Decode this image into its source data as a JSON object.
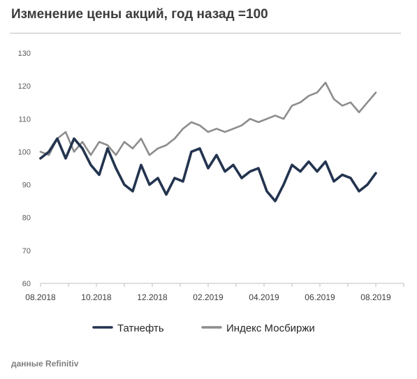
{
  "title": "Изменение цены акций, год назад =100",
  "source": "данные Refinitiv",
  "chart_data": {
    "type": "line",
    "title": "Изменение цены акций, год назад =100",
    "xlabel": "",
    "ylabel": "",
    "ylim": [
      60,
      130
    ],
    "yticks": [
      60,
      70,
      80,
      90,
      100,
      110,
      120,
      130
    ],
    "xticks": [
      "08.2018",
      "10.2018",
      "12.2018",
      "02.2019",
      "04.2019",
      "06.2019",
      "08.2019"
    ],
    "grid": false,
    "legend": "bottom",
    "colors": {
      "tatneft": "#23344f",
      "moex": "#8c8c8c"
    },
    "series": [
      {
        "name": "Татнефть",
        "x": [
          "08.2018",
          "08.2018",
          "09.2018",
          "09.2018",
          "09.2018",
          "09.2018",
          "10.2018",
          "10.2018",
          "10.2018",
          "11.2018",
          "11.2018",
          "11.2018",
          "11.2018",
          "11.2018",
          "12.2018",
          "12.2018",
          "12.2018",
          "01.2019",
          "01.2019",
          "01.2019",
          "02.2019",
          "02.2019",
          "02.2019",
          "03.2019",
          "03.2019",
          "03.2019",
          "04.2019",
          "04.2019",
          "04.2019",
          "05.2019",
          "05.2019",
          "05.2019",
          "06.2019",
          "06.2019",
          "06.2019",
          "07.2019",
          "07.2019",
          "07.2019",
          "07.2019",
          "08.2019",
          "08.2019"
        ],
        "values": [
          98,
          100,
          104,
          98,
          104,
          101,
          96,
          93,
          101,
          95,
          90,
          88,
          96,
          90,
          92,
          87,
          92,
          91,
          100,
          101,
          95,
          99,
          94,
          96,
          92,
          94,
          95,
          88,
          85,
          90,
          96,
          94,
          97,
          94,
          97,
          91,
          93,
          92,
          88,
          90,
          93.5
        ]
      },
      {
        "name": "Индекс Мосбиржи",
        "x": [
          "08.2018",
          "08.2018",
          "09.2018",
          "09.2018",
          "09.2018",
          "09.2018",
          "10.2018",
          "10.2018",
          "10.2018",
          "11.2018",
          "11.2018",
          "11.2018",
          "11.2018",
          "11.2018",
          "12.2018",
          "12.2018",
          "12.2018",
          "01.2019",
          "01.2019",
          "01.2019",
          "02.2019",
          "02.2019",
          "02.2019",
          "03.2019",
          "03.2019",
          "03.2019",
          "04.2019",
          "04.2019",
          "04.2019",
          "05.2019",
          "05.2019",
          "05.2019",
          "06.2019",
          "06.2019",
          "06.2019",
          "07.2019",
          "07.2019",
          "07.2019",
          "07.2019",
          "08.2019",
          "08.2019"
        ],
        "values": [
          100,
          99,
          104,
          106,
          100,
          103,
          99,
          103,
          102,
          99,
          103,
          101,
          104,
          99,
          101,
          102,
          104,
          107,
          109,
          108,
          106,
          107,
          106,
          107,
          108,
          110,
          109,
          110,
          111,
          110,
          114,
          115,
          117,
          118,
          121,
          116,
          114,
          115,
          112,
          115,
          118
        ]
      }
    ]
  }
}
